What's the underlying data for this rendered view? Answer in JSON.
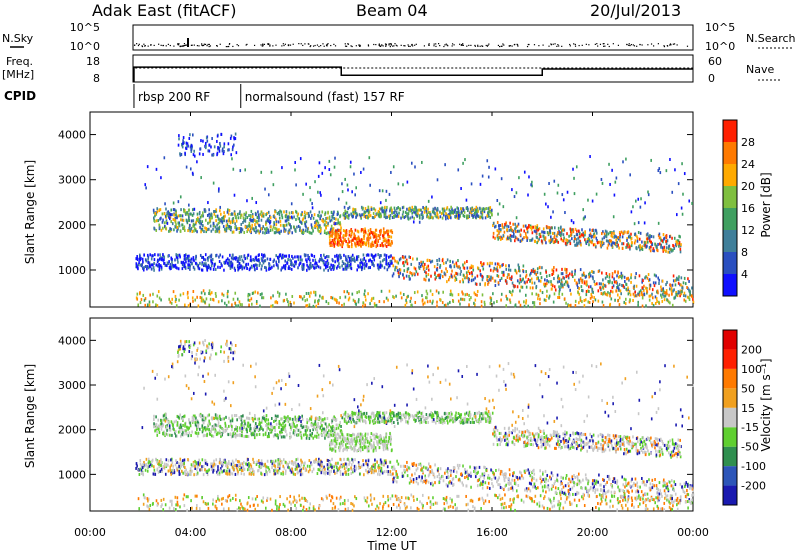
{
  "header": {
    "station": "Adak East (fitACF)",
    "beam": "Beam 04",
    "date": "20/Jul/2013"
  },
  "side_labels": {
    "nsky": "N.Sky",
    "freq_line1": "Freq.",
    "freq_line2": "[MHz]",
    "cpid": "CPID",
    "nsearch": "N.Search",
    "nave": "Nave"
  },
  "cpid_segments": [
    {
      "label": "rbsp 200 RF",
      "start_hour": 1.75
    },
    {
      "label": "normalsound (fast) 157 RF",
      "start_hour": 6.0
    }
  ],
  "chart_data": [
    {
      "type": "line",
      "name": "noise-panel",
      "x_range": [
        0,
        24
      ],
      "y_left_ticks": [
        "10^5",
        "10^0"
      ],
      "y_right_ticks": [
        "10^5",
        "10^0"
      ]
    },
    {
      "type": "line",
      "name": "frequency-panel",
      "x_range": [
        0,
        24
      ],
      "y_left_ticks": [
        "18",
        "8"
      ],
      "y_right_ticks": [
        "60",
        "0"
      ],
      "freq_steps": [
        {
          "x0": 1.75,
          "x1": 10.0,
          "mhz": 13.5
        },
        {
          "x0": 10.0,
          "x1": 18.0,
          "mhz": 10.5
        },
        {
          "x0": 18.0,
          "x1": 24.0,
          "mhz": 12.8
        }
      ]
    },
    {
      "type": "heatmap",
      "name": "power",
      "ylabel": "Slant Range [km]",
      "ylim": [
        180,
        4500
      ],
      "yticks": [
        "1000",
        "2000",
        "3000",
        "4000"
      ],
      "colorbar_label": "Power [dB]",
      "colorbar_ticks": [
        "4",
        "8",
        "12",
        "16",
        "20",
        "24",
        "28"
      ],
      "colors": [
        "#1010ff",
        "#2a4fc0",
        "#3f7f9a",
        "#3f9f60",
        "#7fbf3f",
        "#ffaa00",
        "#ff7a00",
        "#ff2000"
      ]
    },
    {
      "type": "heatmap",
      "name": "velocity",
      "ylabel": "Slant Range [km]",
      "ylim": [
        180,
        4500
      ],
      "yticks": [
        "1000",
        "2000",
        "3000",
        "4000"
      ],
      "colorbar_label": "Velocity [m s⁻¹]",
      "colorbar_ticks": [
        "200",
        "100",
        "50",
        "15",
        "-15",
        "-50",
        "-100",
        "-200"
      ],
      "colors": [
        "#1a1ab0",
        "#2c55b8",
        "#2f8f4f",
        "#5fcf30",
        "#c8c8c8",
        "#f0a020",
        "#ff7a00",
        "#ff2000",
        "#e00000"
      ]
    }
  ],
  "xaxis": {
    "ticks": [
      "00:00",
      "04:00",
      "08:00",
      "12:00",
      "16:00",
      "20:00",
      "00:00"
    ],
    "label": "Time UT"
  }
}
